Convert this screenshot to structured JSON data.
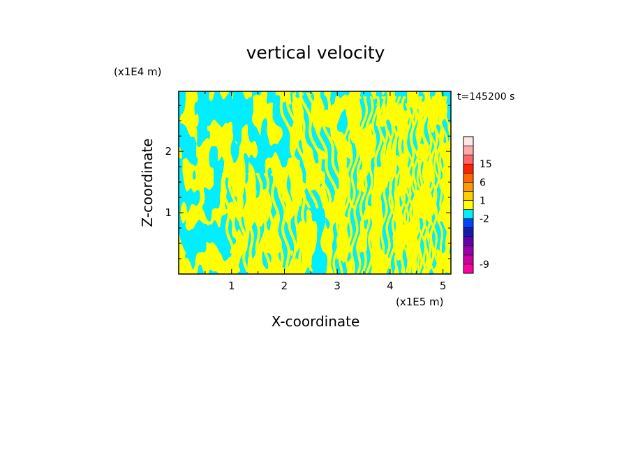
{
  "chart_data": {
    "type": "heatmap",
    "title": "vertical velocity",
    "xlabel": "X-coordinate",
    "ylabel": "Z-coordinate",
    "x_unit": "(x1E5 m)",
    "y_unit": "(x1E4 m)",
    "time_label": "t=145200 s",
    "xlim": [
      0,
      5.15
    ],
    "ylim": [
      0,
      2.98
    ],
    "x_ticks": [
      1,
      2,
      3,
      4,
      5
    ],
    "y_ticks": [
      1,
      2
    ],
    "x_tick_labels": [
      "1",
      "2",
      "3",
      "4",
      "5"
    ],
    "y_tick_labels": [
      "1",
      "2"
    ],
    "fill_colors": {
      "positive": "#ffff00",
      "negative": "#00eeff"
    },
    "colorbar": {
      "levels": [
        {
          "color": "#ff00a0"
        },
        {
          "color": "#cc00a0"
        },
        {
          "color": "#9900aa"
        },
        {
          "color": "#6600aa"
        },
        {
          "color": "#1a1aaa"
        },
        {
          "color": "#0044ff"
        },
        {
          "color": "#00eeff"
        },
        {
          "color": "#ffff00"
        },
        {
          "color": "#ffd000"
        },
        {
          "color": "#ff9900"
        },
        {
          "color": "#ff6600"
        },
        {
          "color": "#ff2200"
        },
        {
          "color": "#ff6666"
        },
        {
          "color": "#ffaaaa"
        },
        {
          "color": "#ffe6e6"
        }
      ],
      "labels": [
        {
          "text": "15",
          "level": 12
        },
        {
          "text": "6",
          "level": 10
        },
        {
          "text": "1",
          "level": 8
        },
        {
          "text": "-2",
          "level": 6
        },
        {
          "text": "-9",
          "level": 1
        }
      ]
    }
  }
}
